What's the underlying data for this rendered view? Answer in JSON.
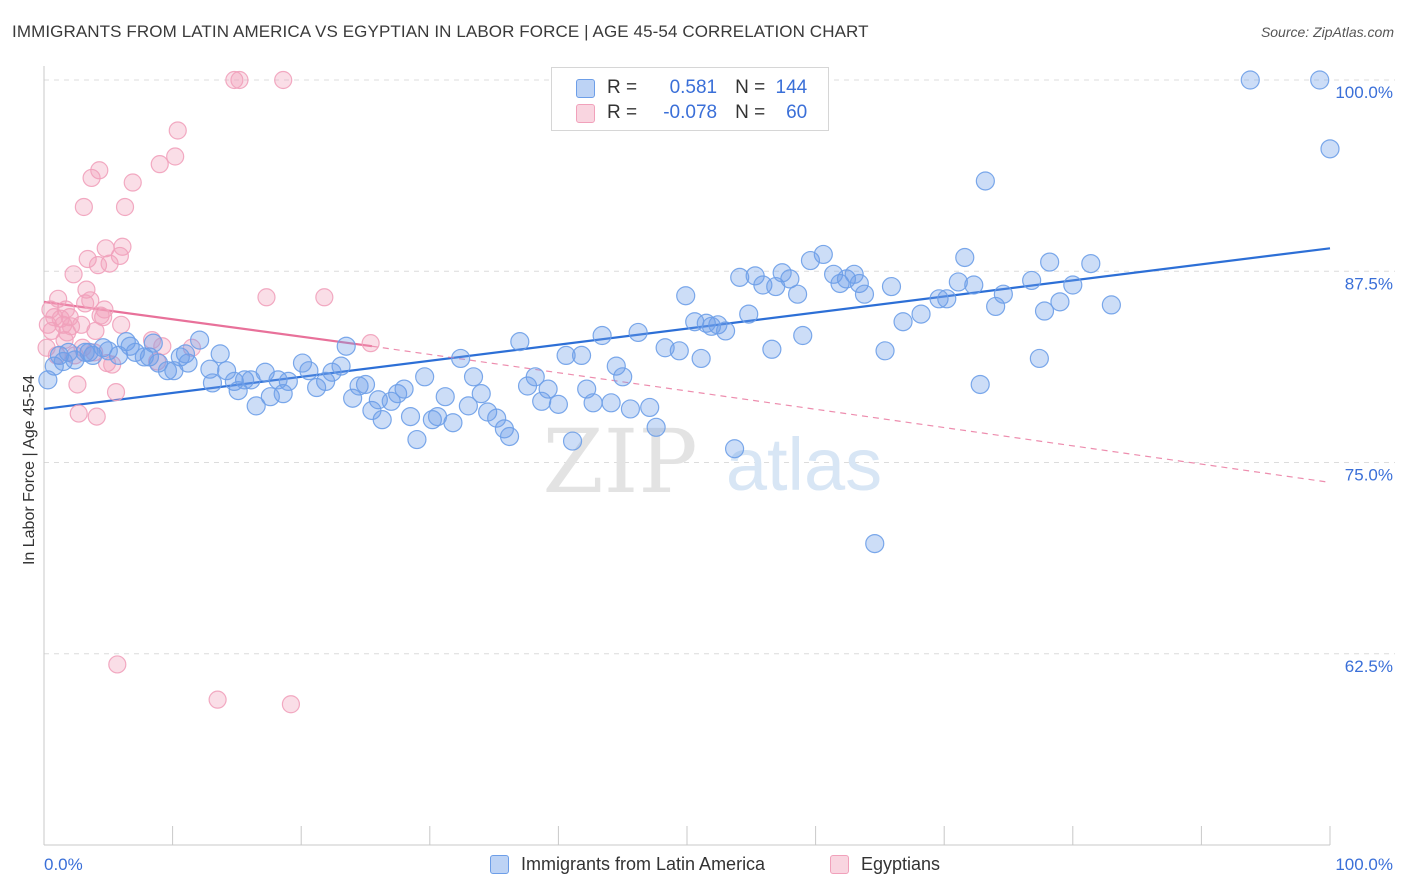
{
  "title": "IMMIGRANTS FROM LATIN AMERICA VS EGYPTIAN IN LABOR FORCE | AGE 45-54 CORRELATION CHART",
  "source": "Source: ZipAtlas.com",
  "watermark": {
    "zip": "ZIP",
    "atlas": "atlas"
  },
  "legend": {
    "r_label": "R =",
    "n_label": "N =",
    "rows": [
      {
        "r": "0.581",
        "n": "144",
        "color": "#6d9ee8"
      },
      {
        "r": "-0.078",
        "n": "60",
        "color": "#f1a1bb"
      }
    ]
  },
  "chart_data": {
    "type": "scatter",
    "title": "IMMIGRANTS FROM LATIN AMERICA VS EGYPTIAN IN LABOR FORCE | AGE 45-54 CORRELATION CHART",
    "xlabel": "",
    "ylabel": "In Labor Force | Age 45-54",
    "xlim": [
      0,
      100
    ],
    "ylim": [
      50,
      100
    ],
    "x_tick_labels": [
      "0.0%",
      "100.0%"
    ],
    "y_ticks": [
      62.5,
      75.0,
      87.5,
      100.0
    ],
    "y_tick_labels": [
      "62.5%",
      "75.0%",
      "87.5%",
      "100.0%"
    ],
    "grid": "horizontal dashed",
    "legend_position": "top-center",
    "series": [
      {
        "name": "Immigrants from Latin America",
        "color": "#6d9ee8",
        "trend": {
          "x": [
            0,
            100
          ],
          "y": [
            78.5,
            89.0
          ],
          "style": "solid"
        },
        "points": [
          [
            0.3,
            80.4
          ],
          [
            0.8,
            81.3
          ],
          [
            1.2,
            82.0
          ],
          [
            1.5,
            81.6
          ],
          [
            1.9,
            82.2
          ],
          [
            2.4,
            81.7
          ],
          [
            3.2,
            82.2
          ],
          [
            3.5,
            82.2
          ],
          [
            3.8,
            82.0
          ],
          [
            4.6,
            82.5
          ],
          [
            5.0,
            82.3
          ],
          [
            5.8,
            82.0
          ],
          [
            6.4,
            82.9
          ],
          [
            6.7,
            82.6
          ],
          [
            7.1,
            82.2
          ],
          [
            7.8,
            81.9
          ],
          [
            8.2,
            81.9
          ],
          [
            8.5,
            82.8
          ],
          [
            8.9,
            81.5
          ],
          [
            9.6,
            81.0
          ],
          [
            10.1,
            81.0
          ],
          [
            10.6,
            81.9
          ],
          [
            11.0,
            82.1
          ],
          [
            11.2,
            81.5
          ],
          [
            12.1,
            83.0
          ],
          [
            12.9,
            81.1
          ],
          [
            13.1,
            80.2
          ],
          [
            13.7,
            82.1
          ],
          [
            14.2,
            81.0
          ],
          [
            14.8,
            80.3
          ],
          [
            15.1,
            79.7
          ],
          [
            15.6,
            80.4
          ],
          [
            16.1,
            80.4
          ],
          [
            16.5,
            78.7
          ],
          [
            17.2,
            80.9
          ],
          [
            17.6,
            79.3
          ],
          [
            18.2,
            80.4
          ],
          [
            18.6,
            79.5
          ],
          [
            19.0,
            80.3
          ],
          [
            20.1,
            81.5
          ],
          [
            20.6,
            81.0
          ],
          [
            21.2,
            79.9
          ],
          [
            21.9,
            80.3
          ],
          [
            22.4,
            80.9
          ],
          [
            23.1,
            81.3
          ],
          [
            23.5,
            82.6
          ],
          [
            24.0,
            79.2
          ],
          [
            24.5,
            80.0
          ],
          [
            25.0,
            80.1
          ],
          [
            25.5,
            78.4
          ],
          [
            26.0,
            79.1
          ],
          [
            26.3,
            77.8
          ],
          [
            27.0,
            79.0
          ],
          [
            27.5,
            79.5
          ],
          [
            28.0,
            79.8
          ],
          [
            28.5,
            78.0
          ],
          [
            29.0,
            76.5
          ],
          [
            29.6,
            80.6
          ],
          [
            30.2,
            77.8
          ],
          [
            30.6,
            78.0
          ],
          [
            31.2,
            79.3
          ],
          [
            31.8,
            77.6
          ],
          [
            32.4,
            81.8
          ],
          [
            33.0,
            78.7
          ],
          [
            33.4,
            80.6
          ],
          [
            34.0,
            79.5
          ],
          [
            34.5,
            78.3
          ],
          [
            35.2,
            77.9
          ],
          [
            35.8,
            77.2
          ],
          [
            36.2,
            76.7
          ],
          [
            37.0,
            82.9
          ],
          [
            37.6,
            80.0
          ],
          [
            38.2,
            80.6
          ],
          [
            38.7,
            79.0
          ],
          [
            39.2,
            79.8
          ],
          [
            40.0,
            78.8
          ],
          [
            40.6,
            82.0
          ],
          [
            41.1,
            76.4
          ],
          [
            41.8,
            82.0
          ],
          [
            42.2,
            79.8
          ],
          [
            42.7,
            78.9
          ],
          [
            43.4,
            83.3
          ],
          [
            44.1,
            78.9
          ],
          [
            44.5,
            81.3
          ],
          [
            45.0,
            80.6
          ],
          [
            45.6,
            78.5
          ],
          [
            46.2,
            83.5
          ],
          [
            47.1,
            78.6
          ],
          [
            47.6,
            77.3
          ],
          [
            48.3,
            82.5
          ],
          [
            49.4,
            82.3
          ],
          [
            49.9,
            85.9
          ],
          [
            50.6,
            84.2
          ],
          [
            51.1,
            81.8
          ],
          [
            51.5,
            84.1
          ],
          [
            51.9,
            83.9
          ],
          [
            52.4,
            84.0
          ],
          [
            53.0,
            83.6
          ],
          [
            53.7,
            75.9
          ],
          [
            54.1,
            87.1
          ],
          [
            54.8,
            84.7
          ],
          [
            55.3,
            87.2
          ],
          [
            55.9,
            86.6
          ],
          [
            56.6,
            82.4
          ],
          [
            56.9,
            86.5
          ],
          [
            57.4,
            87.4
          ],
          [
            58.0,
            87.0
          ],
          [
            58.6,
            86.0
          ],
          [
            59.0,
            83.3
          ],
          [
            59.6,
            88.2
          ],
          [
            60.6,
            88.6
          ],
          [
            61.4,
            87.3
          ],
          [
            61.9,
            86.7
          ],
          [
            62.4,
            87.0
          ],
          [
            63.0,
            87.3
          ],
          [
            63.4,
            86.7
          ],
          [
            63.8,
            86.0
          ],
          [
            64.6,
            69.7
          ],
          [
            65.4,
            82.3
          ],
          [
            65.9,
            86.5
          ],
          [
            66.8,
            84.2
          ],
          [
            68.2,
            84.7
          ],
          [
            69.6,
            85.7
          ],
          [
            70.2,
            85.7
          ],
          [
            71.1,
            86.8
          ],
          [
            71.6,
            88.4
          ],
          [
            72.3,
            86.6
          ],
          [
            72.8,
            80.1
          ],
          [
            73.2,
            93.4
          ],
          [
            74.0,
            85.2
          ],
          [
            74.6,
            86.0
          ],
          [
            76.8,
            86.9
          ],
          [
            77.4,
            81.8
          ],
          [
            77.8,
            84.9
          ],
          [
            78.2,
            88.1
          ],
          [
            79.0,
            85.5
          ],
          [
            80.0,
            86.6
          ],
          [
            81.4,
            88.0
          ],
          [
            83.0,
            85.3
          ],
          [
            93.8,
            100.0
          ],
          [
            99.2,
            100.0
          ],
          [
            100.0,
            95.5
          ]
        ]
      },
      {
        "name": "Egyptians",
        "color": "#f1a1bb",
        "trend": {
          "x": [
            0,
            25.5
          ],
          "y": [
            85.5,
            82.6
          ],
          "style": "solid",
          "extended": {
            "x": [
              25.5,
              100
            ],
            "y": [
              82.6,
              73.7
            ],
            "style": "dashed"
          }
        },
        "points": [
          [
            0.2,
            82.5
          ],
          [
            0.3,
            84.0
          ],
          [
            0.5,
            85.0
          ],
          [
            0.6,
            83.6
          ],
          [
            0.8,
            84.5
          ],
          [
            1.0,
            82.0
          ],
          [
            1.1,
            85.7
          ],
          [
            1.3,
            84.4
          ],
          [
            1.5,
            84.0
          ],
          [
            1.6,
            83.0
          ],
          [
            1.7,
            85.0
          ],
          [
            1.8,
            83.5
          ],
          [
            2.0,
            84.5
          ],
          [
            2.1,
            83.9
          ],
          [
            2.3,
            87.3
          ],
          [
            2.4,
            82.0
          ],
          [
            2.6,
            80.1
          ],
          [
            2.7,
            78.2
          ],
          [
            2.9,
            84.0
          ],
          [
            3.0,
            82.5
          ],
          [
            3.1,
            91.7
          ],
          [
            3.2,
            85.4
          ],
          [
            3.3,
            86.3
          ],
          [
            3.4,
            88.3
          ],
          [
            3.6,
            85.6
          ],
          [
            3.7,
            93.6
          ],
          [
            3.9,
            82.2
          ],
          [
            4.0,
            83.6
          ],
          [
            4.1,
            78.0
          ],
          [
            4.2,
            87.9
          ],
          [
            4.3,
            94.1
          ],
          [
            4.4,
            84.6
          ],
          [
            4.6,
            84.5
          ],
          [
            4.7,
            85.0
          ],
          [
            4.8,
            89.0
          ],
          [
            4.9,
            81.5
          ],
          [
            5.1,
            88.0
          ],
          [
            5.3,
            81.4
          ],
          [
            5.6,
            79.6
          ],
          [
            5.7,
            61.8
          ],
          [
            5.9,
            88.5
          ],
          [
            6.0,
            84.0
          ],
          [
            6.1,
            89.1
          ],
          [
            6.3,
            91.7
          ],
          [
            6.9,
            93.3
          ],
          [
            8.4,
            83.0
          ],
          [
            8.8,
            81.6
          ],
          [
            9.0,
            94.5
          ],
          [
            9.2,
            82.6
          ],
          [
            10.2,
            95.0
          ],
          [
            10.4,
            96.7
          ],
          [
            11.5,
            82.5
          ],
          [
            13.5,
            59.5
          ],
          [
            14.8,
            100.0
          ],
          [
            15.2,
            100.0
          ],
          [
            17.3,
            85.8
          ],
          [
            18.6,
            100.0
          ],
          [
            19.2,
            59.2
          ],
          [
            21.8,
            85.8
          ],
          [
            25.4,
            82.8
          ]
        ]
      }
    ]
  }
}
